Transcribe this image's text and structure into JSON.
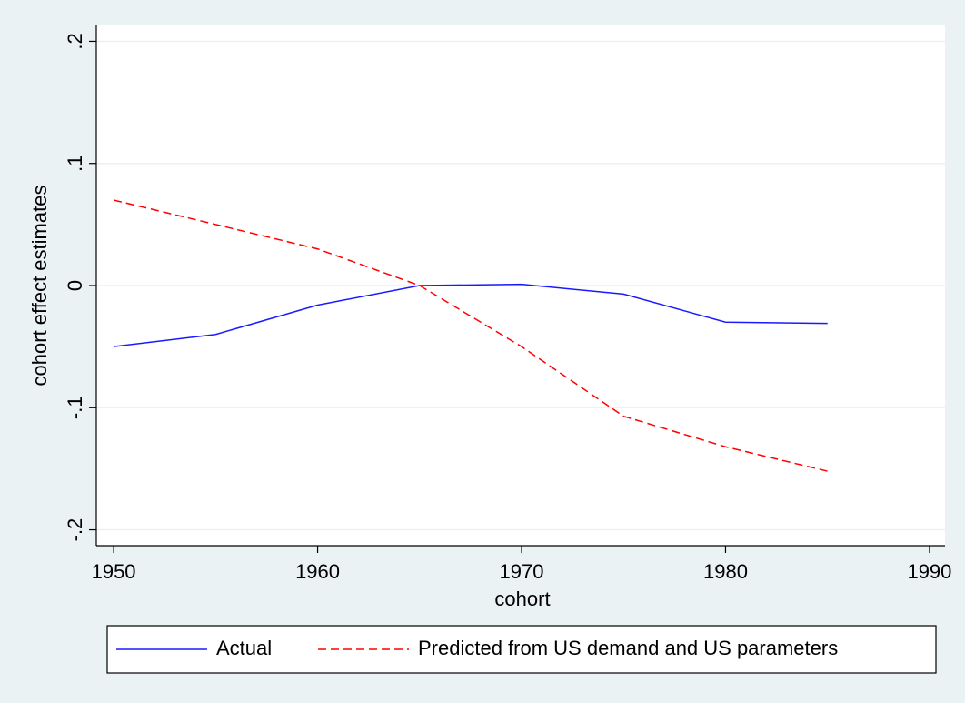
{
  "chart_data": {
    "type": "line",
    "xlabel": "cohort",
    "ylabel": "cohort effect estimates",
    "x": [
      1950,
      1955,
      1960,
      1965,
      1970,
      1975,
      1980,
      1985
    ],
    "series": [
      {
        "name": "Actual",
        "color": "#1a1aff",
        "linestyle": "solid",
        "values": [
          -0.05,
          -0.04,
          -0.016,
          0,
          0.001,
          -0.007,
          -0.03,
          -0.031
        ]
      },
      {
        "name": "Predicted from US demand and US parameters",
        "color": "#ff0000",
        "linestyle": "dashed",
        "values": [
          0.07,
          0.05,
          0.03,
          0,
          -0.05,
          -0.107,
          -0.132,
          -0.152
        ]
      }
    ],
    "xlim": [
      1949.15,
      1990.76
    ],
    "xticks": [
      1950,
      1960,
      1970,
      1980,
      1990
    ],
    "ylim": [
      -0.213,
      0.213
    ],
    "yticks": [
      {
        "value": -0.2,
        "label": "-.2"
      },
      {
        "value": -0.1,
        "label": "-.1"
      },
      0,
      {
        "value": 0.1,
        "label": ".1"
      },
      {
        "value": 0.2,
        "label": ".2"
      }
    ],
    "grid": true,
    "legend": "bottom"
  }
}
